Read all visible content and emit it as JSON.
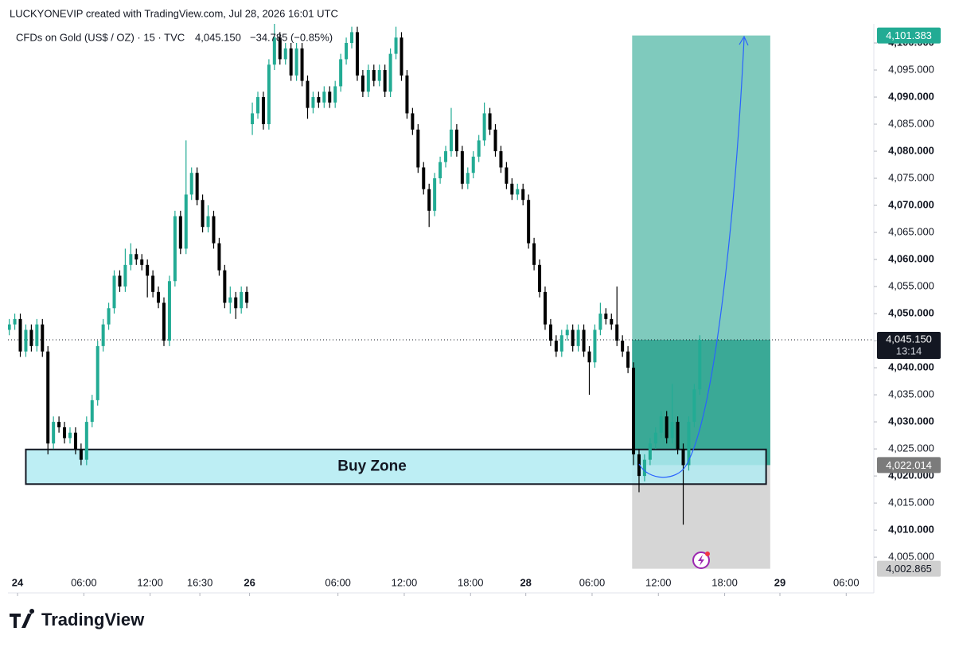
{
  "header": {
    "author_line": "LUCKYONEVIP created with TradingView.com, Jul 28, 2026 16:01 UTC",
    "symbol": "CFDs on Gold (US$ / OZ) · 15 · TVC",
    "price": "4,045.150",
    "change": "−34.785 (−0.85%)"
  },
  "footer": {
    "brand": "TradingView"
  },
  "chart_data": {
    "type": "candlestick",
    "up_color": "#22ab94",
    "down_color": "#000000",
    "xlim": [
      -3.47,
      310
    ],
    "ylim": [
      3998.4,
      4103.53
    ],
    "xticks": [
      {
        "value": 0,
        "label": "24"
      },
      {
        "value": 24,
        "label": "06:00"
      },
      {
        "value": 48,
        "label": "12:00"
      },
      {
        "value": 66,
        "label": "16:30"
      },
      {
        "value": 84,
        "label": "26"
      },
      {
        "value": 116,
        "label": "06:00"
      },
      {
        "value": 140,
        "label": "12:00"
      },
      {
        "value": 164,
        "label": "18:00"
      },
      {
        "value": 184,
        "label": "28"
      },
      {
        "value": 208,
        "label": "06:00"
      },
      {
        "value": 232,
        "label": "12:00"
      },
      {
        "value": 256,
        "label": "18:00"
      },
      {
        "value": 276,
        "label": "29"
      },
      {
        "value": 300,
        "label": "06:00"
      }
    ],
    "yticks": [
      {
        "value": 4005,
        "label": "4,005.000"
      },
      {
        "value": 4010,
        "label": "4,010.000"
      },
      {
        "value": 4015,
        "label": "4,015.000"
      },
      {
        "value": 4020,
        "label": "4,020.000"
      },
      {
        "value": 4025,
        "label": "4,025.000"
      },
      {
        "value": 4030,
        "label": "4,030.000"
      },
      {
        "value": 4035,
        "label": "4,035.000"
      },
      {
        "value": 4040,
        "label": "4,040.000"
      },
      {
        "value": 4045,
        "label": "4,045.000"
      },
      {
        "value": 4050,
        "label": "4,050.000"
      },
      {
        "value": 4055,
        "label": "4,055.000"
      },
      {
        "value": 4060,
        "label": "4,060.000"
      },
      {
        "value": 4065,
        "label": "4,065.000"
      },
      {
        "value": 4070,
        "label": "4,070.000"
      },
      {
        "value": 4075,
        "label": "4,075.000"
      },
      {
        "value": 4080,
        "label": "4,080.000"
      },
      {
        "value": 4085,
        "label": "4,085.000"
      },
      {
        "value": 4090,
        "label": "4,090.000"
      },
      {
        "value": 4095,
        "label": "4,095.000"
      },
      {
        "value": 4100,
        "label": "4,100.000"
      }
    ],
    "candles": {
      "x": [
        -3,
        -1,
        1,
        3,
        5,
        7,
        9,
        11,
        13,
        15,
        17,
        19,
        21,
        23,
        25,
        27,
        29,
        31,
        33,
        35,
        37,
        39,
        41,
        43,
        45,
        47,
        49,
        51,
        53,
        55,
        57,
        59,
        61,
        63,
        65,
        67,
        69,
        71,
        73,
        75,
        77,
        79,
        81,
        83,
        85,
        87,
        89,
        91,
        93,
        95,
        97,
        99,
        101,
        103,
        105,
        107,
        109,
        111,
        113,
        115,
        117,
        119,
        121,
        123,
        125,
        127,
        129,
        131,
        133,
        135,
        137,
        139,
        141,
        143,
        145,
        147,
        149,
        151,
        153,
        155,
        157,
        159,
        161,
        163,
        165,
        167,
        169,
        171,
        173,
        175,
        177,
        179,
        181,
        183,
        185,
        187,
        189,
        191,
        193,
        195,
        197,
        199,
        201,
        203,
        205,
        207,
        209,
        211,
        213,
        215,
        217,
        219,
        221,
        223,
        225,
        227,
        229,
        231,
        233,
        235,
        237,
        239,
        241,
        243,
        245,
        247
      ],
      "open": [
        4047,
        4048,
        4049,
        4043,
        4047,
        4044,
        4048,
        4043,
        4026,
        4030,
        4029,
        4027,
        4028,
        4025,
        4023,
        4030,
        4034,
        4044,
        4048,
        4051,
        4057,
        4055,
        4059,
        4061,
        4060,
        4059,
        4057,
        4054,
        4052,
        4045,
        4056,
        4068,
        4062,
        4072,
        4076,
        4071,
        4066,
        4068,
        4063,
        4058,
        4052,
        4053,
        4051,
        4054,
        4085,
        4087,
        4090,
        4085,
        4096,
        4101,
        4097,
        4099,
        4094,
        4099,
        4093,
        4088,
        4090,
        4089,
        4091,
        4089,
        4092,
        4097,
        4100,
        4102,
        4094,
        4091,
        4095,
        4093,
        4095,
        4091,
        4098,
        4101,
        4094,
        4087,
        4084,
        4077,
        4073,
        4069,
        4075,
        4078,
        4080,
        4084,
        4080,
        4074,
        4076,
        4079,
        4082,
        4087,
        4084,
        4080,
        4077,
        4074,
        4072,
        4073,
        4071,
        4063,
        4059,
        4054,
        4048,
        4045,
        4043,
        4046,
        4047,
        4044,
        4047,
        4043,
        4041,
        4047,
        4050,
        4049,
        4048,
        4045,
        4043,
        4040,
        4024,
        4020,
        4023,
        4026,
        4028,
        4031,
        4027,
        4030,
        4025,
        4022,
        4030,
        4036
      ],
      "high": [
        4049,
        4050,
        4050,
        4048,
        4048,
        4049,
        4049,
        4044,
        4031,
        4031,
        4030,
        4029,
        4029,
        4026,
        4031,
        4035,
        4045,
        4049,
        4052,
        4058,
        4058,
        4062,
        4063,
        4062,
        4061,
        4060,
        4058,
        4055,
        4053,
        4057,
        4069,
        4069,
        4082,
        4077,
        4077,
        4072,
        4070,
        4069,
        4064,
        4059,
        4055,
        4054,
        4055,
        4055,
        4089,
        4091,
        4091,
        4097,
        4104,
        4102,
        4100,
        4100,
        4100,
        4100,
        4094,
        4091,
        4091,
        4092,
        4092,
        4093,
        4098,
        4101,
        4103,
        4103,
        4095,
        4096,
        4096,
        4096,
        4096,
        4099,
        4103,
        4102,
        4095,
        4088,
        4085,
        4078,
        4074,
        4076,
        4079,
        4081,
        4088,
        4085,
        4081,
        4077,
        4080,
        4083,
        4089,
        4088,
        4085,
        4081,
        4078,
        4075,
        4074,
        4074,
        4072,
        4064,
        4060,
        4055,
        4049,
        4046,
        4047,
        4048,
        4048,
        4048,
        4048,
        4044,
        4048,
        4052,
        4051,
        4050,
        4055,
        4046,
        4044,
        4041,
        4025,
        4024,
        4027,
        4029,
        4032,
        4032,
        4037,
        4031,
        4026,
        4031,
        4037,
        4046
      ],
      "low": [
        4046,
        4047,
        4042,
        4042,
        4043,
        4043,
        4042,
        4024,
        4025,
        4028,
        4026,
        4026,
        4024,
        4022,
        4022,
        4029,
        4033,
        4043,
        4047,
        4050,
        4054,
        4054,
        4058,
        4059,
        4058,
        4053,
        4053,
        4051,
        4044,
        4044,
        4055,
        4061,
        4061,
        4071,
        4070,
        4065,
        4065,
        4062,
        4057,
        4051,
        4050,
        4049,
        4050,
        4051,
        4083,
        4086,
        4084,
        4084,
        4095,
        4096,
        4096,
        4093,
        4093,
        4092,
        4086,
        4087,
        4088,
        4088,
        4088,
        4088,
        4091,
        4096,
        4099,
        4093,
        4090,
        4090,
        4092,
        4092,
        4090,
        4090,
        4097,
        4093,
        4086,
        4083,
        4076,
        4072,
        4066,
        4068,
        4074,
        4077,
        4079,
        4079,
        4073,
        4073,
        4075,
        4078,
        4081,
        4083,
        4079,
        4076,
        4073,
        4071,
        4071,
        4070,
        4062,
        4058,
        4053,
        4047,
        4044,
        4042,
        4042,
        4045,
        4043,
        4043,
        4042,
        4035,
        4040,
        4046,
        4048,
        4047,
        4044,
        4042,
        4039,
        4022,
        4017,
        4019,
        4022,
        4025,
        4027,
        4026,
        4026,
        4024,
        4011,
        4021,
        4029,
        4035
      ],
      "close": [
        4048,
        4049,
        4043,
        4047,
        4044,
        4048,
        4043,
        4026,
        4030,
        4029,
        4027,
        4028,
        4025,
        4023,
        4030,
        4034,
        4044,
        4048,
        4051,
        4057,
        4055,
        4059,
        4061,
        4060,
        4059,
        4057,
        4054,
        4052,
        4045,
        4056,
        4068,
        4062,
        4072,
        4076,
        4071,
        4066,
        4068,
        4063,
        4058,
        4052,
        4053,
        4051,
        4054,
        4052,
        4087,
        4090,
        4085,
        4096,
        4101,
        4097,
        4099,
        4094,
        4099,
        4093,
        4088,
        4090,
        4089,
        4091,
        4089,
        4092,
        4097,
        4100,
        4102,
        4094,
        4091,
        4095,
        4093,
        4095,
        4091,
        4098,
        4101,
        4094,
        4087,
        4084,
        4077,
        4073,
        4069,
        4075,
        4078,
        4080,
        4084,
        4080,
        4074,
        4076,
        4079,
        4082,
        4087,
        4084,
        4080,
        4077,
        4074,
        4072,
        4073,
        4071,
        4063,
        4059,
        4054,
        4048,
        4045,
        4043,
        4046,
        4047,
        4044,
        4047,
        4043,
        4041,
        4047,
        4050,
        4049,
        4048,
        4045,
        4043,
        4040,
        4024,
        4020,
        4023,
        4026,
        4028,
        4031,
        4027,
        4030,
        4025,
        4022,
        4030,
        4036,
        4045.15
      ]
    },
    "current_price": {
      "value": 4045.15,
      "label": "4,045.150",
      "countdown": "13:14"
    },
    "buy_zone": {
      "label": "Buy Zone",
      "x_start": 3,
      "x_end": 271,
      "low": 4018.5,
      "high": 4024.9
    },
    "position": {
      "x_start": 222.5,
      "x_end": 272.5,
      "target": {
        "value": 4101.383,
        "label": "4,101.383"
      },
      "entry": {
        "value": 4022.014,
        "label": "4,022.014"
      },
      "stop": {
        "value": 4002.865,
        "label": "4,002.865"
      }
    }
  }
}
